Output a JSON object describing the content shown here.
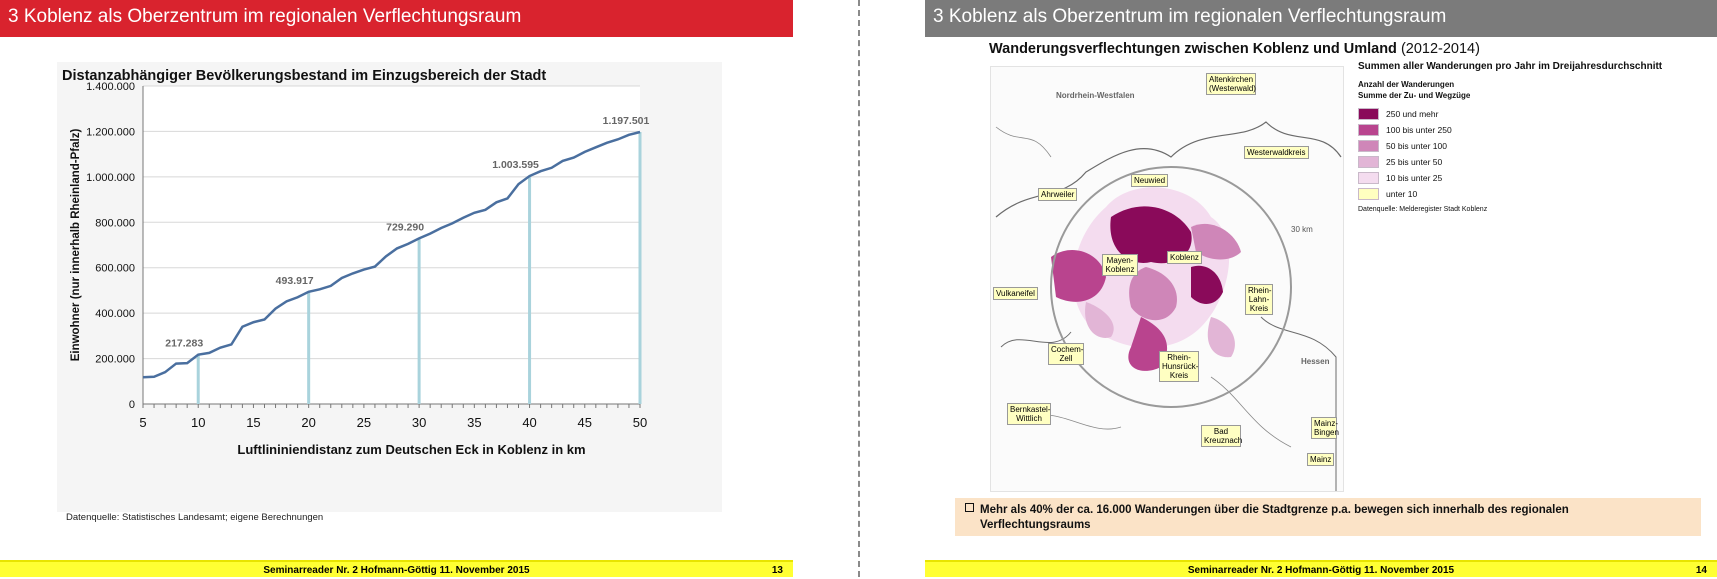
{
  "left_slide": {
    "header": "3 Koblenz als Oberzentrum im regionalen Verflechtungsraum",
    "chart_title": "Distanzabhängiger Bevölkerungsbestand im Einzugsbereich der Stadt",
    "source": "Datenquelle: Statistisches Landesamt; eigene Berechnungen",
    "footer": "Seminarreader Nr. 2 Hofmann-Göttig 11. November 2015",
    "page_number": "13"
  },
  "right_slide": {
    "header": "3 Koblenz als Oberzentrum im regionalen Verflechtungsraum",
    "title_main": "Wanderungsverflechtungen  zwischen Koblenz und Umland",
    "title_years": "(2012-2014)",
    "legend": {
      "title": "Summen aller Wanderungen pro Jahr im Dreijahresdurchschnitt",
      "subtitle1": "Anzahl der Wanderungen",
      "subtitle2": "Summe der Zu- und Wegzüge",
      "items": [
        {
          "label": "250 und mehr",
          "color": "#8a0a5a"
        },
        {
          "label": "100 bis unter 250",
          "color": "#b9448e"
        },
        {
          "label": "50 bis unter 100",
          "color": "#cf86b8"
        },
        {
          "label": "25 bis unter 50",
          "color": "#e2b5d6"
        },
        {
          "label": "10 bis unter 25",
          "color": "#f4dcef"
        },
        {
          "label": "unter 10",
          "color": "#ffffc0"
        }
      ],
      "source": "Datenquelle: Melderegister Stadt Koblenz"
    },
    "map_labels": {
      "nrw": "Nordrhein-Westfalen",
      "altenkirchen": "Altenkirchen (Westerwald)",
      "westerwaldkreis": "Westerwaldkreis",
      "neuwied": "Neuwied",
      "ahrweiler": "Ahrweiler",
      "koblenz": "Koblenz",
      "mayen": "Mayen-Koblenz",
      "vulkaneifel": "Vulkaneifel",
      "rhein_lahn": "Rhein-Lahn-Kreis",
      "cochem": "Cochem-Zell",
      "rhein_hunsrueck": "Rhein-Hunsrück-Kreis",
      "hessen": "Hessen",
      "bernkastel": "Bernkastel-Wittlich",
      "bad_kreuznach": "Bad Kreuznach",
      "mainz_bingen": "Mainz-Bingen",
      "mainz": "Mainz",
      "radius": "30 km"
    },
    "bullet_line1": "Mehr als 40% der ca. 16.000 Wanderungen über die Stadtgrenze p.a. bewegen sich innerhalb des regionalen",
    "bullet_line2": "Verflechtungsraums",
    "footer": "Seminarreader Nr. 2 Hofmann-Göttig 11. November 2015",
    "page_number": "14"
  },
  "chart_data": {
    "type": "line",
    "title": "Distanzabhängiger Bevölkerungsbestand im Einzugsbereich der Stadt",
    "xlabel": "Luftlininiendistanz zum Deutschen Eck in Koblenz in km",
    "ylabel": "Einwohner (nur innerhalb Rheinland-Pfalz)",
    "xlim": [
      5,
      50
    ],
    "ylim": [
      0,
      1400000
    ],
    "x_ticks": [
      "5",
      "10",
      "15",
      "20",
      "25",
      "30",
      "35",
      "40",
      "45",
      "50"
    ],
    "y_ticks": [
      "0",
      "200.000",
      "400.000",
      "600.000",
      "800.000",
      "1.000.000",
      "1.200.000",
      "1.400.000"
    ],
    "grid": true,
    "x": [
      5,
      6,
      7,
      8,
      9,
      10,
      11,
      12,
      13,
      14,
      15,
      16,
      17,
      18,
      19,
      20,
      21,
      22,
      23,
      24,
      25,
      26,
      27,
      28,
      29,
      30,
      31,
      32,
      33,
      34,
      35,
      36,
      37,
      38,
      39,
      40,
      41,
      42,
      43,
      44,
      45,
      46,
      47,
      48,
      49,
      50
    ],
    "values": [
      118000,
      120000,
      140000,
      178000,
      180000,
      217283,
      225000,
      248000,
      262000,
      340000,
      360000,
      372000,
      420000,
      452000,
      470000,
      493917,
      505000,
      520000,
      555000,
      575000,
      592000,
      605000,
      650000,
      685000,
      705000,
      729290,
      750000,
      775000,
      795000,
      820000,
      842000,
      855000,
      888000,
      905000,
      968000,
      1003595,
      1025000,
      1040000,
      1070000,
      1085000,
      1110000,
      1130000,
      1150000,
      1165000,
      1185000,
      1197501
    ],
    "highlights": [
      {
        "x": 10,
        "value": 217283,
        "label": "217.283"
      },
      {
        "x": 20,
        "value": 493917,
        "label": "493.917"
      },
      {
        "x": 30,
        "value": 729290,
        "label": "729.290"
      },
      {
        "x": 40,
        "value": 1003595,
        "label": "1.003.595"
      },
      {
        "x": 50,
        "value": 1197501,
        "label": "1.197.501"
      }
    ],
    "line_color": "#4a6f9f",
    "marker_color": "#a9d3dc"
  }
}
